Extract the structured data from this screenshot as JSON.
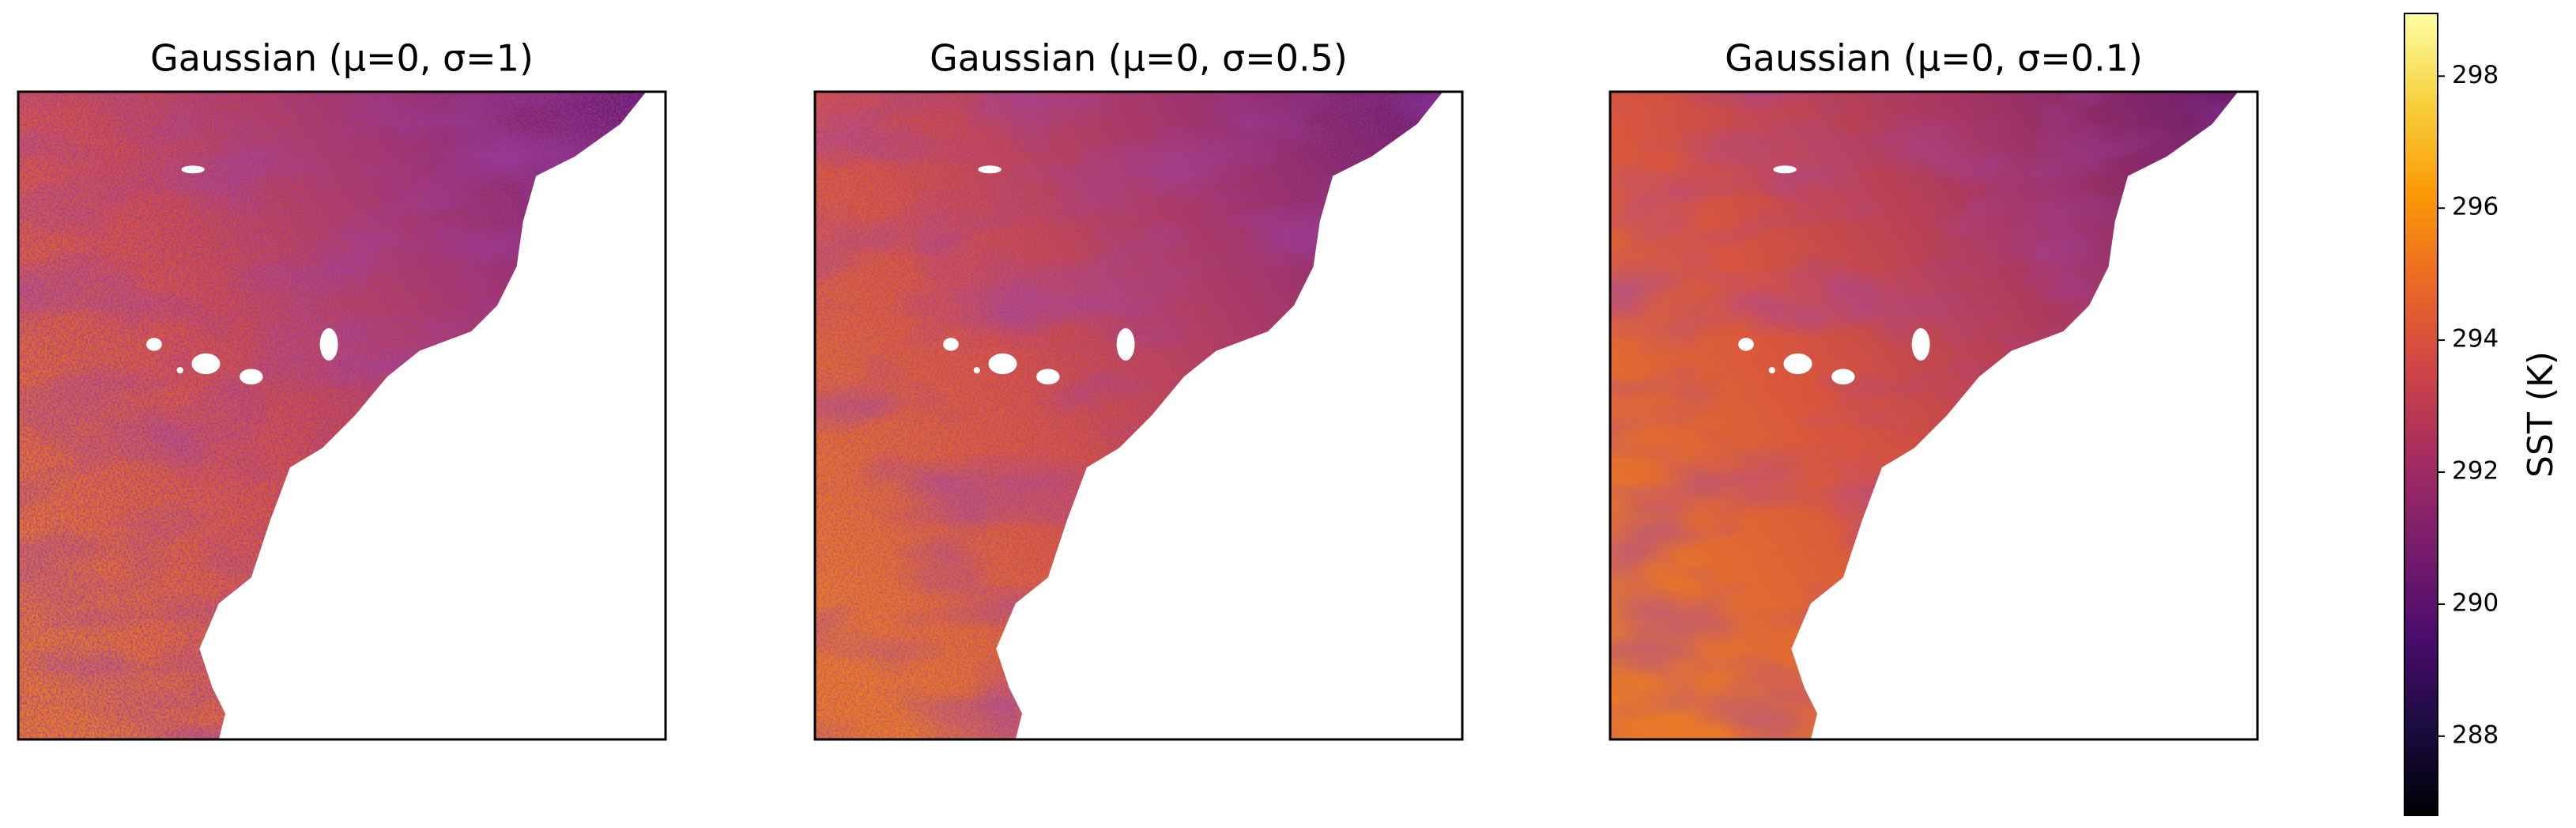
{
  "chart_data": {
    "type": "heatmap",
    "panels": [
      {
        "title": "Gaussian (μ=0, σ=1)"
      },
      {
        "title": "Gaussian (μ=0, σ=0.5)"
      },
      {
        "title": "Gaussian (μ=0, σ=0.1)"
      }
    ],
    "colorbar": {
      "label": "SST (K)",
      "colormap": "inferno",
      "lim": [
        286.8,
        298.95
      ],
      "ticks": [
        288,
        290,
        292,
        294,
        296,
        298
      ]
    }
  }
}
